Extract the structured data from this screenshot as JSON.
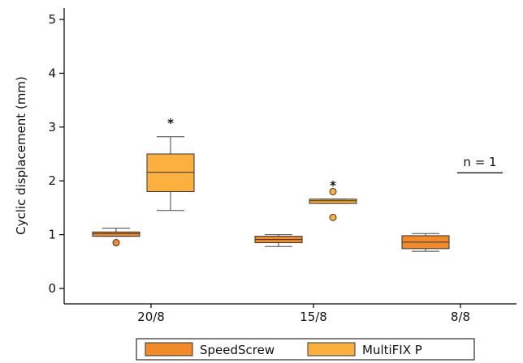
{
  "chart_data": {
    "type": "box",
    "title": "",
    "xlabel": "",
    "ylabel": "Cyclic displacement (mm)",
    "ylim": [
      0,
      5
    ],
    "yticks": [
      "0",
      "1",
      "2",
      "3",
      "4",
      "5"
    ],
    "categories": [
      "20/8",
      "15/8",
      "8/8"
    ],
    "grid": false,
    "legend_position": "bottom",
    "series": [
      {
        "name": "SpeedScrew",
        "color": "#F08A2A",
        "boxes": [
          {
            "category": "20/8",
            "whisker_low": 0.97,
            "q1": 0.97,
            "median": 1.02,
            "q3": 1.05,
            "whisker_high": 1.12,
            "outliers": [
              0.85
            ]
          },
          {
            "category": "15/8",
            "whisker_low": 0.78,
            "q1": 0.85,
            "median": 0.91,
            "q3": 0.97,
            "whisker_high": 1.0,
            "outliers": []
          },
          {
            "category": "8/8",
            "whisker_low": 0.69,
            "q1": 0.74,
            "median": 0.86,
            "q3": 0.98,
            "whisker_high": 1.02,
            "outliers": []
          }
        ]
      },
      {
        "name": "MultiFIX P",
        "color": "#FBB040",
        "boxes": [
          {
            "category": "20/8",
            "whisker_low": 1.45,
            "q1": 1.8,
            "median": 2.16,
            "q3": 2.5,
            "whisker_high": 2.82,
            "outliers": [],
            "annotation": "*"
          },
          {
            "category": "15/8",
            "whisker_low": 1.58,
            "q1": 1.58,
            "median": 1.63,
            "q3": 1.66,
            "whisker_high": 1.66,
            "outliers": [
              1.8,
              1.32
            ],
            "annotation": "*"
          }
        ]
      }
    ],
    "annotations": [
      {
        "text": "n = 1",
        "category": "8/8",
        "series": "MultiFIX P",
        "line_value": 2.15
      }
    ]
  }
}
